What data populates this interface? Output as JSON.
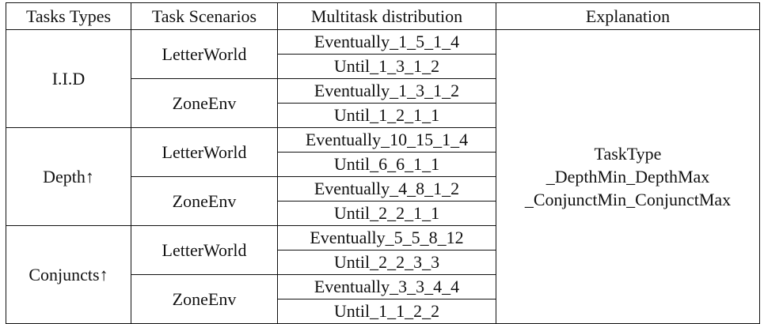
{
  "headers": [
    "Tasks Types",
    "Task Scenarios",
    "Multitask distribution",
    "Explanation"
  ],
  "groups": [
    {
      "type": "I.I.D",
      "scenarios": [
        {
          "name": "LetterWorld",
          "distributions": [
            "Eventually_1_5_1_4",
            "Until_1_3_1_2"
          ]
        },
        {
          "name": "ZoneEnv",
          "distributions": [
            "Eventually_1_3_1_2",
            "Until_1_2_1_1"
          ]
        }
      ]
    },
    {
      "type": "Depth↑",
      "scenarios": [
        {
          "name": "LetterWorld",
          "distributions": [
            "Eventually_10_15_1_4",
            "Until_6_6_1_1"
          ]
        },
        {
          "name": "ZoneEnv",
          "distributions": [
            "Eventually_4_8_1_2",
            "Until_2_2_1_1"
          ]
        }
      ]
    },
    {
      "type": "Conjuncts↑",
      "scenarios": [
        {
          "name": "LetterWorld",
          "distributions": [
            "Eventually_5_5_8_12",
            "Until_2_2_3_3"
          ]
        },
        {
          "name": "ZoneEnv",
          "distributions": [
            "Eventually_3_3_4_4",
            "Until_1_1_2_2"
          ]
        }
      ]
    }
  ],
  "explanation": [
    "TaskType",
    "_DepthMin_DepthMax",
    "_ConjunctMin_ConjunctMax"
  ]
}
